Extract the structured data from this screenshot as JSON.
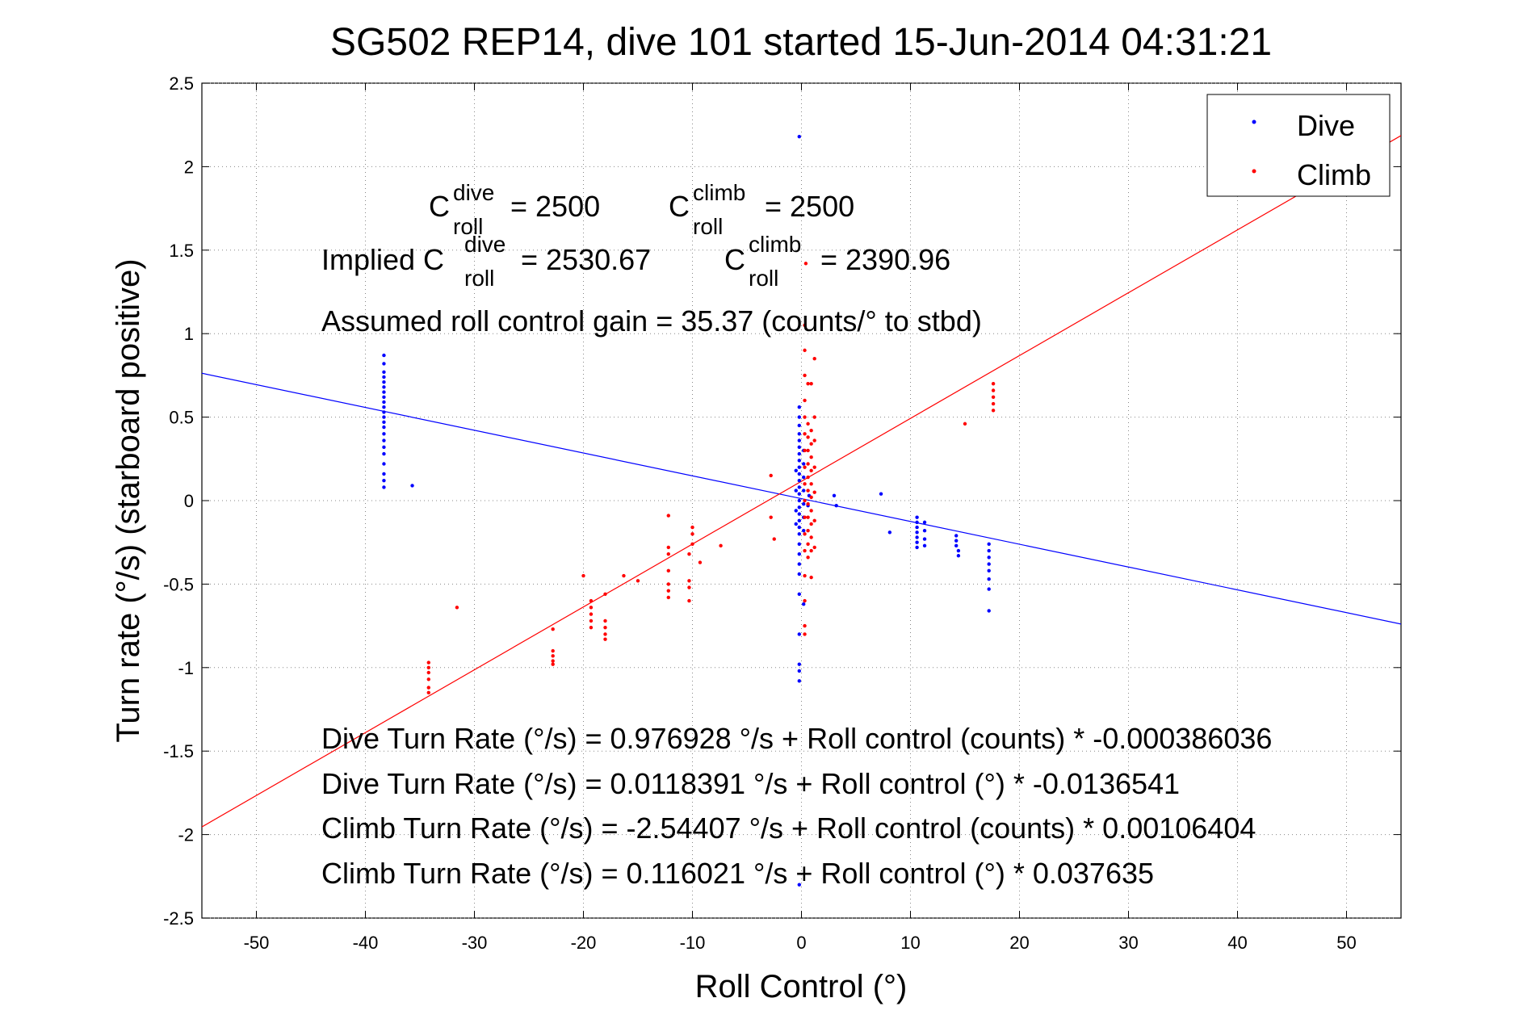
{
  "chart_data": {
    "type": "scatter",
    "title": "SG502 REP14, dive 101 started 15-Jun-2014 04:31:21",
    "xlabel": "Roll Control (°)",
    "ylabel": "Turn rate (°/s) (starboard positive)",
    "xlim": [
      -55,
      55
    ],
    "ylim": [
      -2.5,
      2.5
    ],
    "x_ticks": [
      -50,
      -40,
      -30,
      -20,
      -10,
      0,
      10,
      20,
      30,
      40,
      50
    ],
    "y_ticks": [
      -2.5,
      -2,
      -1.5,
      -1,
      -0.5,
      0,
      0.5,
      1,
      1.5,
      2,
      2.5
    ],
    "grid": "dotted",
    "legend_position": "top-right",
    "legend": [
      {
        "label": "Dive",
        "color": "#0000ff",
        "marker": "dot"
      },
      {
        "label": "Climb",
        "color": "#ff0000",
        "marker": "dot"
      }
    ],
    "series": [
      {
        "name": "Dive",
        "color": "#0000ff",
        "points": [
          [
            -38.3,
            0.87
          ],
          [
            -38.3,
            0.82
          ],
          [
            -38.3,
            0.77
          ],
          [
            -38.3,
            0.74
          ],
          [
            -38.3,
            0.71
          ],
          [
            -38.3,
            0.68
          ],
          [
            -38.3,
            0.65
          ],
          [
            -38.3,
            0.62
          ],
          [
            -38.3,
            0.59
          ],
          [
            -38.3,
            0.56
          ],
          [
            -38.3,
            0.53
          ],
          [
            -38.3,
            0.5
          ],
          [
            -38.3,
            0.47
          ],
          [
            -38.3,
            0.44
          ],
          [
            -38.3,
            0.4
          ],
          [
            -38.3,
            0.36
          ],
          [
            -38.3,
            0.32
          ],
          [
            -38.3,
            0.28
          ],
          [
            -38.3,
            0.22
          ],
          [
            -38.3,
            0.16
          ],
          [
            -38.3,
            0.12
          ],
          [
            -38.3,
            0.08
          ],
          [
            -35.7,
            0.09
          ],
          [
            -0.2,
            2.18
          ],
          [
            -0.2,
            0.56
          ],
          [
            -0.2,
            0.5
          ],
          [
            -0.2,
            0.45
          ],
          [
            -0.2,
            0.4
          ],
          [
            -0.2,
            0.36
          ],
          [
            -0.2,
            0.32
          ],
          [
            -0.2,
            0.28
          ],
          [
            -0.2,
            0.24
          ],
          [
            -0.2,
            0.2
          ],
          [
            -0.2,
            0.16
          ],
          [
            -0.2,
            0.12
          ],
          [
            -0.2,
            0.08
          ],
          [
            -0.2,
            0.04
          ],
          [
            -0.2,
            0.0
          ],
          [
            -0.2,
            -0.04
          ],
          [
            -0.2,
            -0.08
          ],
          [
            -0.2,
            -0.12
          ],
          [
            -0.2,
            -0.16
          ],
          [
            -0.2,
            -0.2
          ],
          [
            -0.2,
            -0.26
          ],
          [
            -0.2,
            -0.32
          ],
          [
            -0.2,
            -0.38
          ],
          [
            -0.2,
            -0.44
          ],
          [
            -0.2,
            -0.56
          ],
          [
            -0.2,
            -0.8
          ],
          [
            -0.2,
            -0.98
          ],
          [
            -0.2,
            -1.02
          ],
          [
            -0.2,
            -1.08
          ],
          [
            -0.2,
            -2.3
          ],
          [
            0.2,
            0.3
          ],
          [
            0.2,
            0.22
          ],
          [
            0.2,
            0.14
          ],
          [
            0.2,
            0.06
          ],
          [
            0.2,
            -0.02
          ],
          [
            0.2,
            -0.1
          ],
          [
            0.2,
            -0.18
          ],
          [
            0.2,
            -0.62
          ],
          [
            -0.5,
            0.18
          ],
          [
            -0.5,
            0.06
          ],
          [
            -0.5,
            -0.06
          ],
          [
            -0.5,
            -0.14
          ],
          [
            0.6,
            -0.03
          ],
          [
            0.7,
            0.03
          ],
          [
            3.0,
            0.03
          ],
          [
            3.2,
            -0.03
          ],
          [
            7.3,
            0.04
          ],
          [
            8.1,
            -0.19
          ],
          [
            10.6,
            -0.1
          ],
          [
            10.6,
            -0.13
          ],
          [
            10.6,
            -0.16
          ],
          [
            10.6,
            -0.19
          ],
          [
            10.6,
            -0.22
          ],
          [
            10.6,
            -0.25
          ],
          [
            10.6,
            -0.28
          ],
          [
            11.3,
            -0.13
          ],
          [
            11.3,
            -0.18
          ],
          [
            11.3,
            -0.23
          ],
          [
            11.3,
            -0.27
          ],
          [
            14.2,
            -0.21
          ],
          [
            14.2,
            -0.24
          ],
          [
            14.2,
            -0.27
          ],
          [
            14.4,
            -0.3
          ],
          [
            14.4,
            -0.33
          ],
          [
            17.2,
            -0.26
          ],
          [
            17.2,
            -0.3
          ],
          [
            17.2,
            -0.34
          ],
          [
            17.2,
            -0.38
          ],
          [
            17.2,
            -0.42
          ],
          [
            17.2,
            -0.47
          ],
          [
            17.2,
            -0.53
          ],
          [
            17.2,
            -0.66
          ]
        ],
        "fit_line": {
          "intercept": 0.0118391,
          "slope": -0.0136541
        }
      },
      {
        "name": "Climb",
        "color": "#ff0000",
        "points": [
          [
            -34.2,
            -0.97
          ],
          [
            -34.2,
            -1.0
          ],
          [
            -34.2,
            -1.03
          ],
          [
            -34.2,
            -1.07
          ],
          [
            -34.2,
            -1.12
          ],
          [
            -34.2,
            -1.15
          ],
          [
            -31.6,
            -0.64
          ],
          [
            -22.8,
            -0.77
          ],
          [
            -22.8,
            -0.9
          ],
          [
            -22.8,
            -0.93
          ],
          [
            -22.8,
            -0.96
          ],
          [
            -22.8,
            -0.98
          ],
          [
            -20.0,
            -0.45
          ],
          [
            -19.3,
            -0.6
          ],
          [
            -19.3,
            -0.64
          ],
          [
            -19.3,
            -0.68
          ],
          [
            -19.3,
            -0.72
          ],
          [
            -19.3,
            -0.76
          ],
          [
            -18.0,
            -0.56
          ],
          [
            -18.0,
            -0.72
          ],
          [
            -18.0,
            -0.76
          ],
          [
            -18.0,
            -0.8
          ],
          [
            -18.0,
            -0.83
          ],
          [
            -16.3,
            -0.45
          ],
          [
            -15.0,
            -0.48
          ],
          [
            -12.2,
            -0.09
          ],
          [
            -12.2,
            -0.28
          ],
          [
            -12.2,
            -0.32
          ],
          [
            -12.2,
            -0.42
          ],
          [
            -12.2,
            -0.5
          ],
          [
            -12.2,
            -0.54
          ],
          [
            -12.2,
            -0.58
          ],
          [
            -10.3,
            -0.32
          ],
          [
            -10.3,
            -0.48
          ],
          [
            -10.3,
            -0.52
          ],
          [
            -10.3,
            -0.6
          ],
          [
            -10.0,
            -0.16
          ],
          [
            -10.0,
            -0.2
          ],
          [
            -10.0,
            -0.26
          ],
          [
            -9.3,
            -0.37
          ],
          [
            -7.4,
            -0.27
          ],
          [
            -2.8,
            0.15
          ],
          [
            -2.8,
            -0.1
          ],
          [
            -2.5,
            -0.23
          ],
          [
            0.3,
            1.05
          ],
          [
            0.3,
            0.9
          ],
          [
            0.3,
            0.75
          ],
          [
            0.3,
            0.6
          ],
          [
            0.3,
            0.5
          ],
          [
            0.3,
            0.4
          ],
          [
            0.3,
            0.3
          ],
          [
            0.3,
            0.2
          ],
          [
            0.3,
            0.1
          ],
          [
            0.3,
            0.0
          ],
          [
            0.3,
            -0.1
          ],
          [
            0.3,
            -0.2
          ],
          [
            0.3,
            -0.3
          ],
          [
            0.3,
            -0.45
          ],
          [
            0.3,
            -0.6
          ],
          [
            0.3,
            -0.75
          ],
          [
            0.3,
            -0.8
          ],
          [
            0.6,
            0.46
          ],
          [
            0.6,
            0.38
          ],
          [
            0.6,
            0.3
          ],
          [
            0.6,
            0.22
          ],
          [
            0.6,
            0.14
          ],
          [
            0.6,
            0.06
          ],
          [
            0.6,
            -0.02
          ],
          [
            0.6,
            -0.1
          ],
          [
            0.6,
            -0.18
          ],
          [
            0.6,
            -0.26
          ],
          [
            0.6,
            -0.34
          ],
          [
            0.9,
            0.42
          ],
          [
            0.9,
            0.34
          ],
          [
            0.9,
            0.26
          ],
          [
            0.9,
            0.18
          ],
          [
            0.9,
            0.1
          ],
          [
            0.9,
            0.02
          ],
          [
            0.9,
            -0.06
          ],
          [
            0.9,
            -0.14
          ],
          [
            0.9,
            -0.22
          ],
          [
            0.9,
            -0.3
          ],
          [
            0.9,
            -0.46
          ],
          [
            1.2,
            0.5
          ],
          [
            1.2,
            0.36
          ],
          [
            1.2,
            0.2
          ],
          [
            1.2,
            0.05
          ],
          [
            1.2,
            -0.12
          ],
          [
            1.2,
            -0.28
          ],
          [
            0.4,
            1.42
          ],
          [
            0.6,
            0.7
          ],
          [
            0.9,
            0.7
          ],
          [
            1.2,
            0.85
          ],
          [
            15.0,
            0.46
          ],
          [
            17.6,
            0.7
          ],
          [
            17.6,
            0.66
          ],
          [
            17.6,
            0.62
          ],
          [
            17.6,
            0.58
          ],
          [
            17.6,
            0.54
          ]
        ],
        "fit_line": {
          "intercept": 0.116021,
          "slope": 0.037635
        }
      }
    ],
    "annotations": {
      "c_roll_dive": {
        "c": "C",
        "sup": "dive",
        "sub": "roll",
        "value": " = 2500"
      },
      "c_roll_climb": {
        "c": "C",
        "sup": "climb",
        "sub": "roll",
        "value": " = 2500"
      },
      "implied_prefix": "Implied C",
      "implied_dive": {
        "sup": "dive",
        "sub": "roll",
        "value": " = 2530.67"
      },
      "implied_climb": {
        "c": "C",
        "sup": "climb",
        "sub": "roll",
        "value": " = 2390.96"
      },
      "gain": "Assumed roll control gain = 35.37 (counts/° to stbd)",
      "equations": [
        "Dive Turn Rate (°/s) = 0.976928 °/s + Roll control (counts) * -0.000386036",
        "Dive Turn Rate (°/s) = 0.0118391 °/s + Roll control (°) * -0.0136541",
        "Climb Turn Rate (°/s) = -2.54407 °/s + Roll control (counts) * 0.00106404",
        "Climb Turn Rate (°/s) = 0.116021 °/s + Roll control (°) * 0.037635"
      ]
    }
  }
}
